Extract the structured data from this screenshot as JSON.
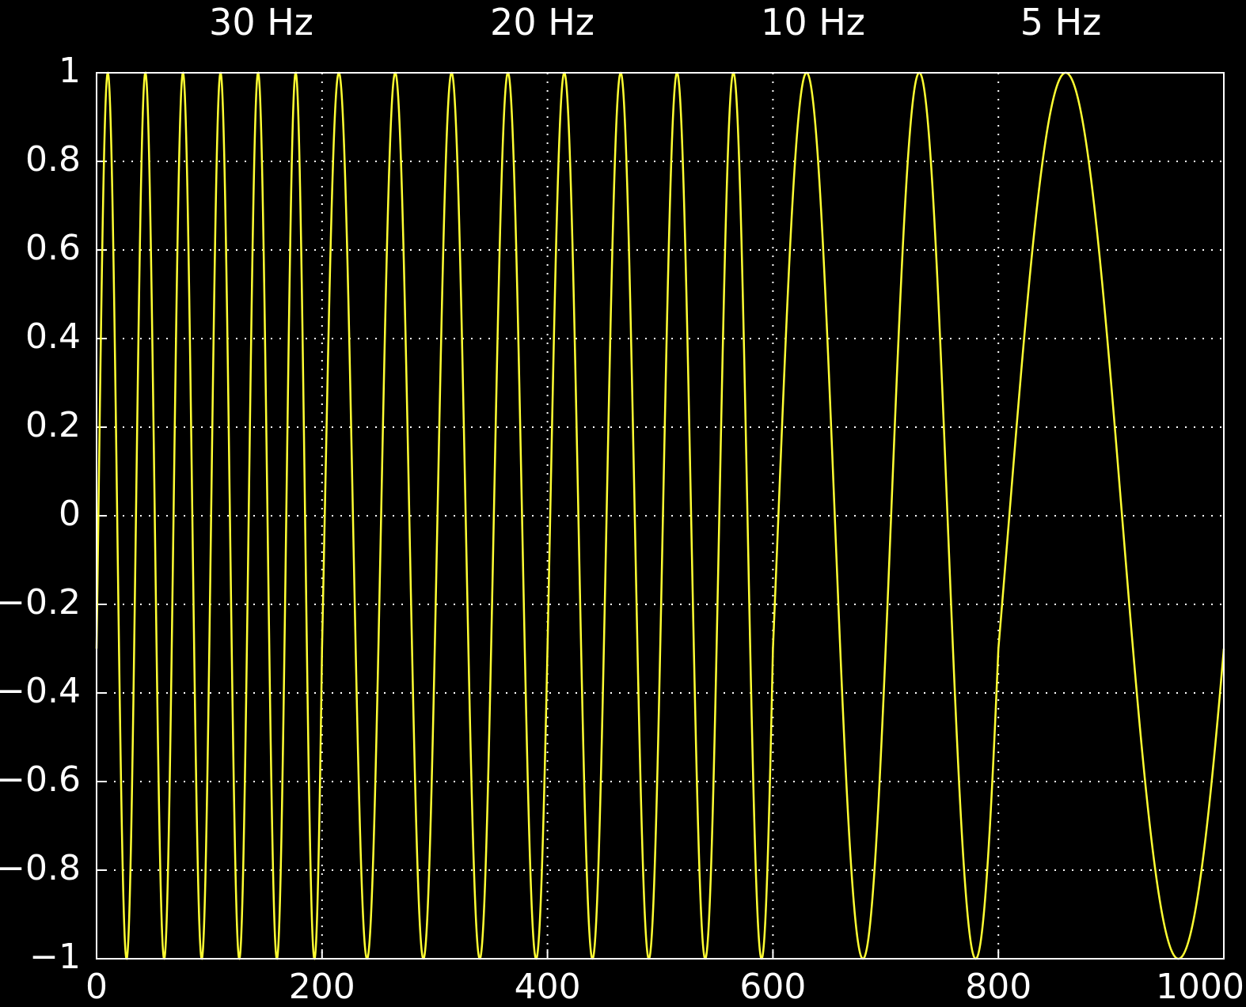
{
  "chart_data": {
    "type": "line",
    "title": "",
    "xlabel": "",
    "ylabel": "",
    "xlim": [
      0,
      1000
    ],
    "ylim": [
      -1,
      1
    ],
    "grid": true,
    "x_ticks": [
      0,
      200,
      400,
      600,
      800,
      1000
    ],
    "x_tick_labels": [
      "0",
      "200",
      "400",
      "600",
      "800",
      "1000"
    ],
    "y_ticks": [
      1,
      0.8,
      0.6,
      0.4,
      0.2,
      0,
      -0.2,
      -0.4,
      -0.6,
      -0.8,
      -1
    ],
    "y_tick_labels": [
      "1",
      "0.8",
      "0.6",
      "0.4",
      "0.2",
      "0",
      "−0.2",
      "−0.4",
      "−0.6",
      "−0.8",
      "−1"
    ],
    "band_labels": [
      {
        "text": "30 Hz",
        "x_center": 100
      },
      {
        "text": "20 Hz",
        "x_center": 400
      },
      {
        "text": "10 Hz",
        "x_center": 600
      },
      {
        "text": "5 Hz",
        "x_center": 800
      }
    ],
    "band_boundaries": [
      200,
      400,
      600,
      800
    ],
    "series": [
      {
        "color": "#ffff33",
        "segments": [
          {
            "x_start": 0,
            "x_end": 200,
            "frequency_hz": 30
          },
          {
            "x_start": 200,
            "x_end": 400,
            "frequency_hz": 20
          },
          {
            "x_start": 400,
            "x_end": 600,
            "frequency_hz": 20
          },
          {
            "x_start": 600,
            "x_end": 800,
            "frequency_hz": 10
          },
          {
            "x_start": 800,
            "x_end": 1000,
            "frequency_hz": 5
          }
        ]
      }
    ],
    "colors": {
      "background": "#000000",
      "axes": "#ffffff",
      "grid": "#ffffff",
      "line": "#ffff33",
      "text": "#ffffff"
    }
  }
}
